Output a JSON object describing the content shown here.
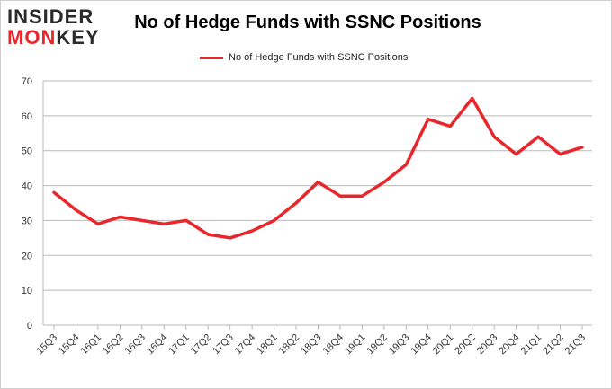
{
  "logo": {
    "line1": "INSIDER",
    "line2_accent": "MON",
    "line2_rest": "KEY"
  },
  "chart_data": {
    "type": "line",
    "title": "No of Hedge Funds with SSNC Positions",
    "xlabel": "",
    "ylabel": "",
    "ylim": [
      0,
      70
    ],
    "yticks": [
      0,
      10,
      20,
      30,
      40,
      50,
      60,
      70
    ],
    "grid": true,
    "legend_position": "top-center",
    "categories": [
      "15Q3",
      "15Q4",
      "16Q1",
      "16Q2",
      "16Q3",
      "16Q4",
      "17Q1",
      "17Q2",
      "17Q3",
      "17Q4",
      "18Q1",
      "18Q2",
      "18Q3",
      "18Q4",
      "19Q1",
      "19Q2",
      "19Q3",
      "19Q4",
      "20Q1",
      "20Q2",
      "20Q3",
      "20Q4",
      "21Q1",
      "21Q2",
      "21Q3"
    ],
    "series": [
      {
        "name": "No of Hedge Funds with SSNC Positions",
        "color": "#e8262b",
        "values": [
          38,
          33,
          29,
          31,
          30,
          29,
          30,
          26,
          25,
          27,
          30,
          35,
          41,
          37,
          37,
          41,
          46,
          59,
          57,
          65,
          54,
          49,
          54,
          49,
          51
        ]
      }
    ]
  }
}
